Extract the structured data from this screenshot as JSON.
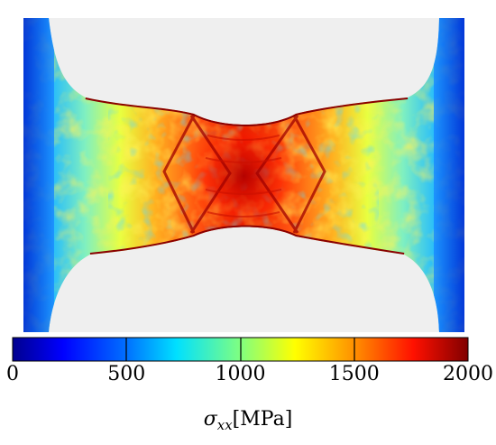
{
  "colorbar": {
    "min": 0,
    "max": 2000,
    "ticks": [
      0,
      500,
      1000,
      1500,
      2000
    ],
    "tick_labels": [
      "0",
      "500",
      "1000",
      "1500",
      "2000"
    ],
    "colormap": "jet",
    "label": {
      "symbol": "σ",
      "subscript": "xx",
      "unit": "[MPa]"
    }
  },
  "colors": {
    "background_panel": "#efefef",
    "colormap_stops": [
      "#00008f",
      "#0000ff",
      "#0080ff",
      "#00ffff",
      "#80ff80",
      "#ffff00",
      "#ff8000",
      "#ff0000",
      "#800000"
    ]
  }
}
